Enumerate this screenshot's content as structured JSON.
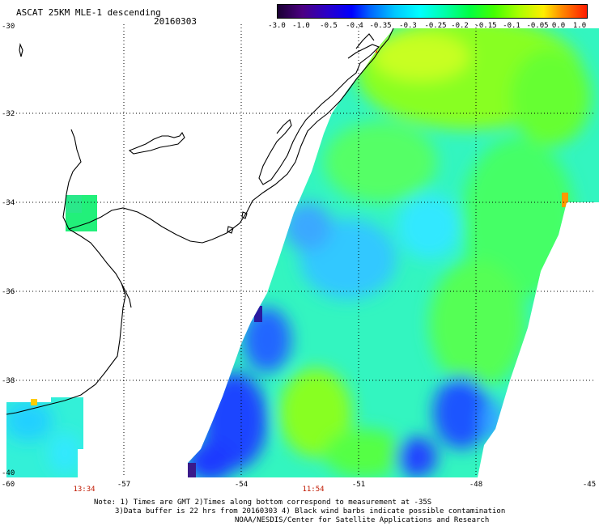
{
  "header": {
    "title": "ASCAT 25KM MLE-1 descending",
    "date": "20160303"
  },
  "colorbar": {
    "labels": [
      "-3.0",
      "-1.0",
      "-0.5",
      "-0.4",
      "-0.35",
      "-0.3",
      "-0.25",
      "-0.2",
      "-0.15",
      "-0.1",
      "-0.05",
      "0.0",
      "1.0"
    ],
    "colors": [
      "#1a0033",
      "#4b0082",
      "#2200d8",
      "#0044ff",
      "#0099ff",
      "#00e5ff",
      "#00ffcc",
      "#00ff66",
      "#22ee00",
      "#aaff00",
      "#ffee00",
      "#ff8800",
      "#ff1a00"
    ]
  },
  "axes": {
    "lat_labels": [
      "-30",
      "-32",
      "-34",
      "-36",
      "-38",
      "-40"
    ],
    "lon_labels": [
      "-60",
      "-57",
      "-54",
      "-51",
      "-48",
      "-45"
    ],
    "time_labels": [
      "13:34",
      "11:54"
    ]
  },
  "notes": {
    "line1": "Note: 1) Times are GMT 2)Times along bottom correspond to measurement at -35S",
    "line2": "3)Data buffer is 22 hrs from 20160303 4) Black wind barbs indicate possible contamination",
    "line3": "NOAA/NESDIS/Center for Satellite Applications and Research"
  },
  "colors": {
    "time_label": "#c01800",
    "grid": "#000000"
  }
}
